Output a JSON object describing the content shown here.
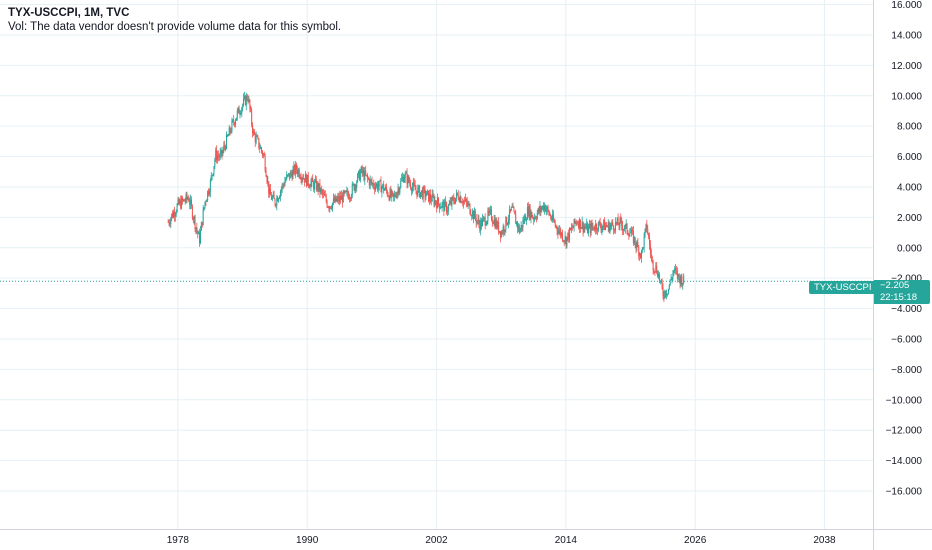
{
  "header": {
    "symbol_line": "TYX-USCCPI, 1M, TVC",
    "volume_note": "Vol: The data vendor doesn't provide volume data for this symbol."
  },
  "price_tag": {
    "symbol_label": "TYX-USCCPI",
    "price": "−2.205",
    "countdown": "22:15:18"
  },
  "colors": {
    "up": "#26a69a",
    "down": "#ef5350",
    "grid": "#e6f0f5",
    "axis_text": "#131722",
    "tag_bg": "#26a69a"
  },
  "chart_data": {
    "type": "line",
    "style": "candlestick",
    "interval": "1M",
    "x_ticks": [
      "1978",
      "1990",
      "2002",
      "2014",
      "2026",
      "2038"
    ],
    "y_ticks": [
      "16.000",
      "14.000",
      "12.000",
      "10.000",
      "8.000",
      "6.000",
      "4.000",
      "2.000",
      "0.000",
      "−2.000",
      "−4.000",
      "−6.000",
      "−8.000",
      "−10.000",
      "−12.000",
      "−14.000",
      "−16.000"
    ],
    "ylim": [
      -18.5,
      16.3
    ],
    "xlim": [
      1961.5,
      2042.5
    ],
    "last_value": -2.205,
    "series": [
      {
        "x": [
          1977.1,
          1978.0,
          1979.0,
          1980.0,
          1980.5,
          1981.0,
          1981.5,
          1982.0,
          1982.5,
          1983.0,
          1983.5,
          1984.0,
          1984.5,
          1985.0,
          1985.5,
          1986.0,
          1986.5,
          1987.0,
          1988.0,
          1989.0,
          1990.0,
          1991.0,
          1992.0,
          1993.0,
          1994.0,
          1995.0,
          1996.0,
          1997.0,
          1998.0,
          1999.0,
          2000.0,
          2001.0,
          2002.0,
          2003.0,
          2004.0,
          2005.0,
          2006.0,
          2007.0,
          2008.0,
          2009.0,
          2009.7,
          2010.5,
          2011.0,
          2012.0,
          2013.0,
          2014.0,
          2015.0,
          2016.0,
          2017.0,
          2018.0,
          2019.0,
          2020.0,
          2021.0,
          2021.5,
          2022.0,
          2022.5,
          2023.0,
          2023.5,
          2024.0,
          2024.5,
          2025.0
        ],
        "y": [
          1.7,
          2.8,
          3.3,
          0.5,
          3.0,
          4.2,
          6.1,
          6.0,
          7.0,
          8.0,
          8.8,
          9.4,
          10.0,
          7.5,
          6.8,
          6.0,
          3.5,
          3.0,
          4.5,
          5.2,
          4.4,
          4.0,
          2.8,
          3.2,
          3.6,
          5.0,
          4.2,
          4.0,
          3.2,
          4.8,
          3.8,
          3.5,
          3.0,
          2.6,
          3.5,
          2.7,
          1.5,
          2.2,
          1.0,
          2.5,
          1.1,
          2.5,
          2.0,
          2.8,
          1.5,
          0.5,
          1.8,
          1.2,
          1.5,
          1.4,
          1.6,
          1.0,
          -0.5,
          1.5,
          -1.0,
          -1.5,
          -3.0,
          -2.7,
          -1.5,
          -2.0,
          -2.2
        ]
      }
    ]
  }
}
